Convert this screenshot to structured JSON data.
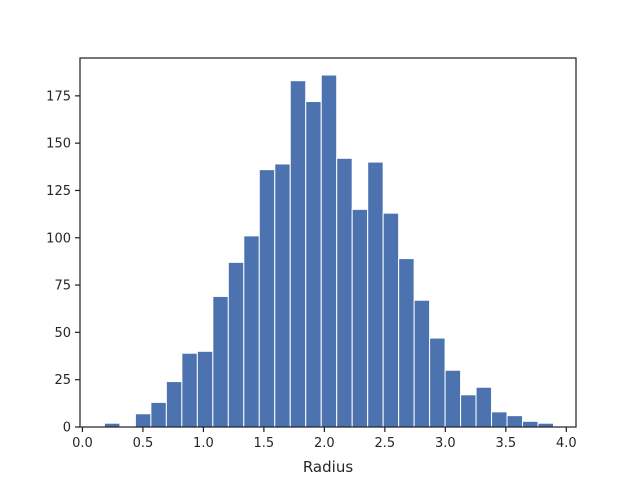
{
  "chart_data": {
    "type": "bar",
    "title": "",
    "xlabel": "Radius",
    "ylabel": "",
    "xlim": [
      -0.02,
      4.08
    ],
    "ylim": [
      0,
      195
    ],
    "grid": false,
    "legend": "none",
    "bar_color": "#4c72b0",
    "x_ticks": [
      0.0,
      0.5,
      1.0,
      1.5,
      2.0,
      2.5,
      3.0,
      3.5,
      4.0
    ],
    "x_tick_labels": [
      "0.0",
      "0.5",
      "1.0",
      "1.5",
      "2.0",
      "2.5",
      "3.0",
      "3.5",
      "4.0"
    ],
    "y_ticks": [
      0,
      25,
      50,
      75,
      100,
      125,
      150,
      175
    ],
    "y_tick_labels": [
      "0",
      "25",
      "50",
      "75",
      "100",
      "125",
      "150",
      "175"
    ],
    "bin_width": 0.128,
    "bins": [
      {
        "x0": 0.182,
        "count": 2
      },
      {
        "x0": 0.31,
        "count": 0
      },
      {
        "x0": 0.438,
        "count": 7
      },
      {
        "x0": 0.566,
        "count": 13
      },
      {
        "x0": 0.694,
        "count": 24
      },
      {
        "x0": 0.822,
        "count": 39
      },
      {
        "x0": 0.95,
        "count": 40
      },
      {
        "x0": 1.078,
        "count": 69
      },
      {
        "x0": 1.206,
        "count": 87
      },
      {
        "x0": 1.334,
        "count": 101
      },
      {
        "x0": 1.462,
        "count": 136
      },
      {
        "x0": 1.59,
        "count": 139
      },
      {
        "x0": 1.718,
        "count": 183
      },
      {
        "x0": 1.846,
        "count": 172
      },
      {
        "x0": 1.974,
        "count": 186
      },
      {
        "x0": 2.102,
        "count": 142
      },
      {
        "x0": 2.23,
        "count": 115
      },
      {
        "x0": 2.358,
        "count": 140
      },
      {
        "x0": 2.486,
        "count": 113
      },
      {
        "x0": 2.614,
        "count": 89
      },
      {
        "x0": 2.742,
        "count": 67
      },
      {
        "x0": 2.87,
        "count": 47
      },
      {
        "x0": 2.998,
        "count": 30
      },
      {
        "x0": 3.126,
        "count": 17
      },
      {
        "x0": 3.254,
        "count": 21
      },
      {
        "x0": 3.382,
        "count": 8
      },
      {
        "x0": 3.51,
        "count": 6
      },
      {
        "x0": 3.638,
        "count": 3
      },
      {
        "x0": 3.766,
        "count": 2
      }
    ]
  }
}
